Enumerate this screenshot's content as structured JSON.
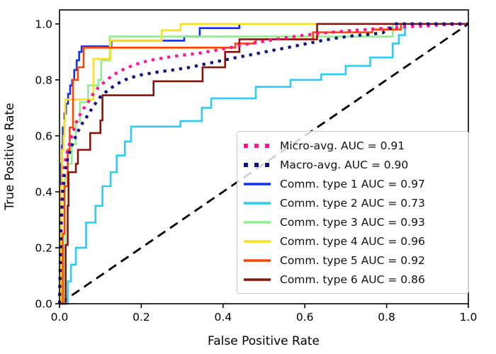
{
  "chart_data": {
    "type": "line",
    "title": "",
    "xlabel": "False Positive Rate",
    "ylabel": "True Positive Rate",
    "xlim": [
      0,
      1.0
    ],
    "ylim": [
      0,
      1.05
    ],
    "xticks": [
      0.0,
      0.2,
      0.4,
      0.6,
      0.8,
      1.0
    ],
    "yticks": [
      0.0,
      0.2,
      0.4,
      0.6,
      0.8,
      1.0
    ],
    "grid": false,
    "legend_position": "lower-right-inside",
    "reference_line": {
      "name": "chance-diagonal",
      "style": "dashed",
      "color": "#000000",
      "points": [
        [
          0,
          0
        ],
        [
          1,
          1
        ]
      ]
    },
    "series": [
      {
        "name": "Micro-avg. AUC = 0.91",
        "auc": 0.91,
        "color": "#FF1493",
        "style": "dotted",
        "points": [
          [
            0,
            0
          ],
          [
            0.004,
            0.33
          ],
          [
            0.008,
            0.45
          ],
          [
            0.012,
            0.5
          ],
          [
            0.02,
            0.55
          ],
          [
            0.03,
            0.6
          ],
          [
            0.04,
            0.645
          ],
          [
            0.05,
            0.675
          ],
          [
            0.06,
            0.7
          ],
          [
            0.07,
            0.72
          ],
          [
            0.08,
            0.745
          ],
          [
            0.09,
            0.765
          ],
          [
            0.1,
            0.78
          ],
          [
            0.12,
            0.805
          ],
          [
            0.14,
            0.825
          ],
          [
            0.16,
            0.84
          ],
          [
            0.18,
            0.852
          ],
          [
            0.2,
            0.862
          ],
          [
            0.23,
            0.872
          ],
          [
            0.26,
            0.88
          ],
          [
            0.3,
            0.888
          ],
          [
            0.34,
            0.895
          ],
          [
            0.38,
            0.905
          ],
          [
            0.42,
            0.916
          ],
          [
            0.46,
            0.928
          ],
          [
            0.5,
            0.938
          ],
          [
            0.55,
            0.95
          ],
          [
            0.6,
            0.96
          ],
          [
            0.65,
            0.968
          ],
          [
            0.7,
            0.975
          ],
          [
            0.75,
            0.98
          ],
          [
            0.8,
            0.985
          ],
          [
            0.85,
            0.989
          ],
          [
            0.9,
            0.993
          ],
          [
            0.95,
            0.998
          ],
          [
            1,
            1
          ]
        ]
      },
      {
        "name": "Macro-avg. AUC = 0.90",
        "auc": 0.9,
        "color": "#10107E",
        "style": "dotted",
        "points": [
          [
            0,
            0
          ],
          [
            0.004,
            0.28
          ],
          [
            0.008,
            0.4
          ],
          [
            0.012,
            0.46
          ],
          [
            0.02,
            0.52
          ],
          [
            0.03,
            0.565
          ],
          [
            0.04,
            0.6
          ],
          [
            0.05,
            0.63
          ],
          [
            0.06,
            0.655
          ],
          [
            0.07,
            0.675
          ],
          [
            0.08,
            0.7
          ],
          [
            0.09,
            0.72
          ],
          [
            0.1,
            0.74
          ],
          [
            0.12,
            0.765
          ],
          [
            0.14,
            0.785
          ],
          [
            0.16,
            0.8
          ],
          [
            0.18,
            0.81
          ],
          [
            0.2,
            0.818
          ],
          [
            0.24,
            0.828
          ],
          [
            0.28,
            0.836
          ],
          [
            0.32,
            0.845
          ],
          [
            0.36,
            0.858
          ],
          [
            0.4,
            0.87
          ],
          [
            0.44,
            0.882
          ],
          [
            0.48,
            0.893
          ],
          [
            0.52,
            0.905
          ],
          [
            0.56,
            0.916
          ],
          [
            0.6,
            0.928
          ],
          [
            0.64,
            0.94
          ],
          [
            0.68,
            0.95
          ],
          [
            0.72,
            0.958
          ],
          [
            0.76,
            0.963
          ],
          [
            0.79,
            0.968
          ],
          [
            0.81,
            0.985
          ],
          [
            0.82,
            1.0
          ],
          [
            1,
            1
          ]
        ]
      },
      {
        "name": "Comm. type 1 AUC = 0.97",
        "auc": 0.97,
        "color": "#1133EE",
        "style": "solid",
        "points": [
          [
            0,
            0
          ],
          [
            0.004,
            0
          ],
          [
            0.004,
            0.5
          ],
          [
            0.006,
            0.5
          ],
          [
            0.006,
            0.565
          ],
          [
            0.008,
            0.565
          ],
          [
            0.008,
            0.63
          ],
          [
            0.012,
            0.63
          ],
          [
            0.012,
            0.68
          ],
          [
            0.016,
            0.68
          ],
          [
            0.016,
            0.715
          ],
          [
            0.021,
            0.715
          ],
          [
            0.021,
            0.75
          ],
          [
            0.026,
            0.75
          ],
          [
            0.026,
            0.78
          ],
          [
            0.031,
            0.78
          ],
          [
            0.031,
            0.8
          ],
          [
            0.036,
            0.8
          ],
          [
            0.036,
            0.835
          ],
          [
            0.042,
            0.835
          ],
          [
            0.042,
            0.87
          ],
          [
            0.048,
            0.87
          ],
          [
            0.048,
            0.9
          ],
          [
            0.054,
            0.9
          ],
          [
            0.054,
            0.92
          ],
          [
            0.127,
            0.92
          ],
          [
            0.127,
            0.94
          ],
          [
            0.305,
            0.94
          ],
          [
            0.305,
            0.955
          ],
          [
            0.343,
            0.955
          ],
          [
            0.343,
            0.985
          ],
          [
            0.44,
            0.985
          ],
          [
            0.44,
            1.0
          ],
          [
            1,
            1
          ]
        ]
      },
      {
        "name": "Comm. type 2 AUC = 0.73",
        "auc": 0.73,
        "color": "#2BCBF2",
        "style": "solid",
        "points": [
          [
            0,
            0
          ],
          [
            0.02,
            0
          ],
          [
            0.02,
            0.08
          ],
          [
            0.028,
            0.08
          ],
          [
            0.028,
            0.14
          ],
          [
            0.04,
            0.14
          ],
          [
            0.04,
            0.2
          ],
          [
            0.065,
            0.2
          ],
          [
            0.065,
            0.29
          ],
          [
            0.088,
            0.29
          ],
          [
            0.088,
            0.35
          ],
          [
            0.105,
            0.35
          ],
          [
            0.105,
            0.42
          ],
          [
            0.125,
            0.42
          ],
          [
            0.125,
            0.47
          ],
          [
            0.14,
            0.47
          ],
          [
            0.14,
            0.53
          ],
          [
            0.16,
            0.53
          ],
          [
            0.16,
            0.58
          ],
          [
            0.175,
            0.58
          ],
          [
            0.175,
            0.633
          ],
          [
            0.296,
            0.633
          ],
          [
            0.296,
            0.653
          ],
          [
            0.348,
            0.653
          ],
          [
            0.348,
            0.7
          ],
          [
            0.371,
            0.7
          ],
          [
            0.371,
            0.734
          ],
          [
            0.48,
            0.734
          ],
          [
            0.48,
            0.775
          ],
          [
            0.565,
            0.775
          ],
          [
            0.565,
            0.8
          ],
          [
            0.64,
            0.8
          ],
          [
            0.64,
            0.82
          ],
          [
            0.7,
            0.82
          ],
          [
            0.7,
            0.85
          ],
          [
            0.76,
            0.85
          ],
          [
            0.76,
            0.88
          ],
          [
            0.815,
            0.88
          ],
          [
            0.815,
            0.93
          ],
          [
            0.83,
            0.93
          ],
          [
            0.83,
            0.96
          ],
          [
            0.845,
            0.96
          ],
          [
            0.845,
            1.0
          ],
          [
            1,
            1
          ]
        ]
      },
      {
        "name": "Comm. type 3 AUC = 0.93",
        "auc": 0.93,
        "color": "#90EE90",
        "style": "solid",
        "points": [
          [
            0,
            0
          ],
          [
            0.01,
            0
          ],
          [
            0.01,
            0.2
          ],
          [
            0.014,
            0.2
          ],
          [
            0.014,
            0.45
          ],
          [
            0.02,
            0.45
          ],
          [
            0.02,
            0.5
          ],
          [
            0.03,
            0.5
          ],
          [
            0.03,
            0.57
          ],
          [
            0.04,
            0.57
          ],
          [
            0.04,
            0.65
          ],
          [
            0.05,
            0.65
          ],
          [
            0.05,
            0.72
          ],
          [
            0.07,
            0.72
          ],
          [
            0.07,
            0.78
          ],
          [
            0.095,
            0.78
          ],
          [
            0.095,
            0.8
          ],
          [
            0.102,
            0.8
          ],
          [
            0.102,
            0.87
          ],
          [
            0.123,
            0.87
          ],
          [
            0.123,
            0.955
          ],
          [
            0.815,
            0.955
          ],
          [
            0.815,
            1.0
          ],
          [
            1,
            1
          ]
        ]
      },
      {
        "name": "Comm. type 4 AUC = 0.96",
        "auc": 0.96,
        "color": "#FFE01E",
        "style": "solid",
        "points": [
          [
            0,
            0
          ],
          [
            0.004,
            0
          ],
          [
            0.004,
            0.42
          ],
          [
            0.006,
            0.42
          ],
          [
            0.006,
            0.55
          ],
          [
            0.01,
            0.55
          ],
          [
            0.01,
            0.6
          ],
          [
            0.012,
            0.6
          ],
          [
            0.012,
            0.655
          ],
          [
            0.014,
            0.655
          ],
          [
            0.014,
            0.73
          ],
          [
            0.083,
            0.73
          ],
          [
            0.083,
            0.875
          ],
          [
            0.125,
            0.875
          ],
          [
            0.125,
            0.94
          ],
          [
            0.25,
            0.94
          ],
          [
            0.25,
            0.977
          ],
          [
            0.296,
            0.977
          ],
          [
            0.296,
            1.0
          ],
          [
            1,
            1
          ]
        ]
      },
      {
        "name": "Comm. type 5 AUC = 0.92",
        "auc": 0.92,
        "color": "#FF4500",
        "style": "solid",
        "points": [
          [
            0,
            0
          ],
          [
            0.008,
            0
          ],
          [
            0.008,
            0.25
          ],
          [
            0.012,
            0.25
          ],
          [
            0.012,
            0.42
          ],
          [
            0.02,
            0.42
          ],
          [
            0.02,
            0.55
          ],
          [
            0.025,
            0.55
          ],
          [
            0.025,
            0.63
          ],
          [
            0.033,
            0.63
          ],
          [
            0.033,
            0.8
          ],
          [
            0.045,
            0.8
          ],
          [
            0.045,
            0.845
          ],
          [
            0.059,
            0.845
          ],
          [
            0.059,
            0.915
          ],
          [
            0.43,
            0.915
          ],
          [
            0.43,
            0.93
          ],
          [
            0.48,
            0.93
          ],
          [
            0.48,
            0.945
          ],
          [
            0.62,
            0.945
          ],
          [
            0.62,
            0.97
          ],
          [
            0.765,
            0.97
          ],
          [
            0.765,
            0.98
          ],
          [
            0.835,
            0.98
          ],
          [
            0.835,
            1.0
          ],
          [
            1,
            1
          ]
        ]
      },
      {
        "name": "Comm. type 6 AUC = 0.86",
        "auc": 0.86,
        "color": "#8B1209",
        "style": "solid",
        "points": [
          [
            0,
            0
          ],
          [
            0.015,
            0
          ],
          [
            0.015,
            0.21
          ],
          [
            0.02,
            0.21
          ],
          [
            0.02,
            0.35
          ],
          [
            0.022,
            0.35
          ],
          [
            0.022,
            0.47
          ],
          [
            0.04,
            0.47
          ],
          [
            0.04,
            0.5
          ],
          [
            0.045,
            0.5
          ],
          [
            0.045,
            0.55
          ],
          [
            0.075,
            0.55
          ],
          [
            0.075,
            0.61
          ],
          [
            0.1,
            0.61
          ],
          [
            0.1,
            0.655
          ],
          [
            0.105,
            0.655
          ],
          [
            0.105,
            0.745
          ],
          [
            0.23,
            0.745
          ],
          [
            0.23,
            0.795
          ],
          [
            0.35,
            0.795
          ],
          [
            0.35,
            0.845
          ],
          [
            0.405,
            0.845
          ],
          [
            0.405,
            0.9
          ],
          [
            0.44,
            0.9
          ],
          [
            0.44,
            0.945
          ],
          [
            0.63,
            0.945
          ],
          [
            0.63,
            1.0
          ],
          [
            1,
            1
          ]
        ]
      }
    ]
  }
}
